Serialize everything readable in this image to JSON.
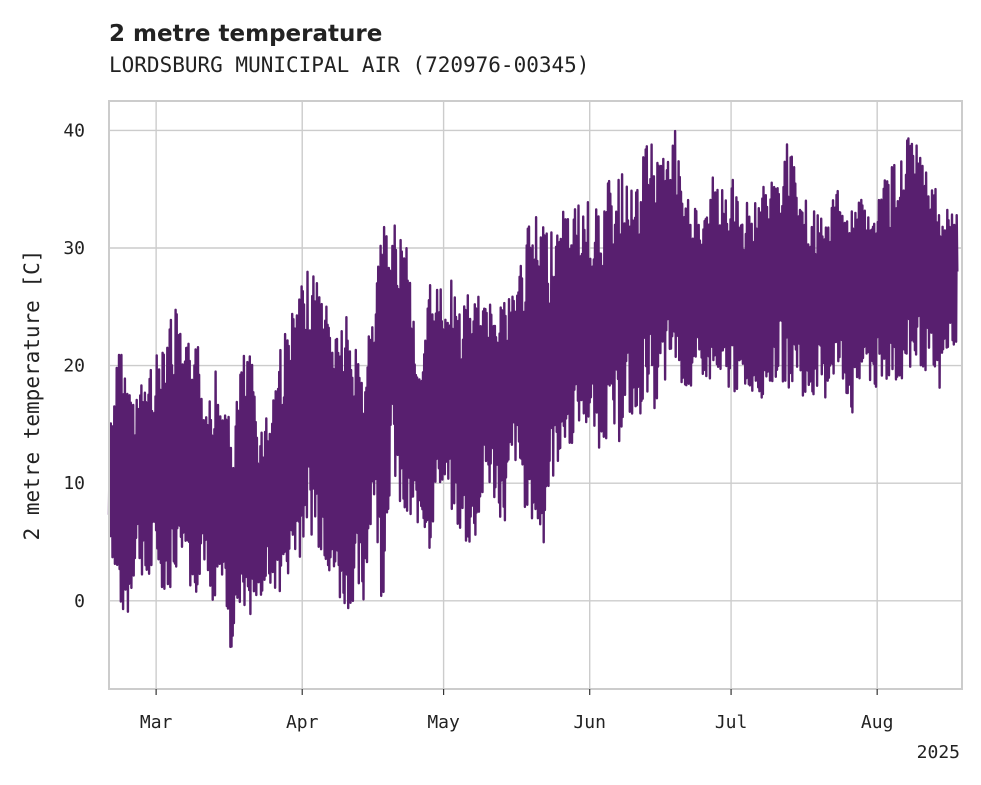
{
  "chart_data": {
    "type": "line",
    "title": "2 metre temperature",
    "subtitle": "LORDSBURG MUNICIPAL AIR (720976-00345)",
    "ylabel": "2 metre temperature [C]",
    "xlabel": "",
    "x_range": [
      "2025-02-19",
      "2025-08-19"
    ],
    "ylim": [
      -7.5,
      42.5
    ],
    "yticks": [
      0,
      10,
      20,
      30,
      40
    ],
    "xticks": [
      {
        "date": "2025-03-01",
        "label": "Mar"
      },
      {
        "date": "2025-04-01",
        "label": "Apr"
      },
      {
        "date": "2025-05-01",
        "label": "May"
      },
      {
        "date": "2025-06-01",
        "label": "Jun"
      },
      {
        "date": "2025-07-01",
        "label": "Jul"
      },
      {
        "date": "2025-08-01",
        "label": "Aug"
      }
    ],
    "year_label": "2025",
    "grid": true,
    "series": [
      {
        "color": "#581f6f",
        "x": [
          "2025-02-19",
          "2025-02-21",
          "2025-02-23",
          "2025-02-25",
          "2025-02-27",
          "2025-03-01",
          "2025-03-03",
          "2025-03-05",
          "2025-03-07",
          "2025-03-09",
          "2025-03-11",
          "2025-03-13",
          "2025-03-15",
          "2025-03-17",
          "2025-03-19",
          "2025-03-21",
          "2025-03-23",
          "2025-03-25",
          "2025-03-27",
          "2025-03-29",
          "2025-03-31",
          "2025-04-02",
          "2025-04-04",
          "2025-04-06",
          "2025-04-08",
          "2025-04-10",
          "2025-04-12",
          "2025-04-14",
          "2025-04-16",
          "2025-04-18",
          "2025-04-20",
          "2025-04-22",
          "2025-04-24",
          "2025-04-26",
          "2025-04-28",
          "2025-04-30",
          "2025-05-02",
          "2025-05-04",
          "2025-05-06",
          "2025-05-08",
          "2025-05-10",
          "2025-05-12",
          "2025-05-14",
          "2025-05-16",
          "2025-05-18",
          "2025-05-20",
          "2025-05-22",
          "2025-05-24",
          "2025-05-26",
          "2025-05-28",
          "2025-05-30",
          "2025-06-01",
          "2025-06-03",
          "2025-06-05",
          "2025-06-07",
          "2025-06-09",
          "2025-06-11",
          "2025-06-13",
          "2025-06-15",
          "2025-06-17",
          "2025-06-19",
          "2025-06-21",
          "2025-06-23",
          "2025-06-25",
          "2025-06-27",
          "2025-06-29",
          "2025-07-01",
          "2025-07-03",
          "2025-07-05",
          "2025-07-07",
          "2025-07-09",
          "2025-07-11",
          "2025-07-13",
          "2025-07-15",
          "2025-07-17",
          "2025-07-19",
          "2025-07-21",
          "2025-07-23",
          "2025-07-25",
          "2025-07-27",
          "2025-07-29",
          "2025-07-31",
          "2025-08-02",
          "2025-08-04",
          "2025-08-06",
          "2025-08-08",
          "2025-08-10",
          "2025-08-12",
          "2025-08-14",
          "2025-08-16",
          "2025-08-18"
        ],
        "min": [
          6,
          -1,
          -2,
          4,
          0,
          3,
          0,
          2,
          5,
          -1,
          4,
          -4,
          2,
          -5,
          0,
          -2,
          0,
          1,
          0,
          2,
          3,
          6,
          5,
          3,
          0,
          -1,
          0,
          -1,
          9,
          -1,
          12,
          6,
          5,
          7,
          4,
          10,
          8,
          6,
          4,
          5,
          10,
          8,
          6,
          12,
          8,
          6,
          4,
          10,
          12,
          13,
          15,
          14,
          13,
          14,
          13,
          16,
          14,
          18,
          16,
          18,
          20,
          18,
          17,
          19,
          18,
          17,
          18,
          17,
          18,
          17,
          18,
          19,
          18,
          19,
          16,
          18,
          17,
          19,
          18,
          15,
          19,
          18,
          17,
          19,
          18,
          19,
          20,
          19,
          17,
          21,
          22
        ],
        "max": [
          15,
          22,
          19,
          18,
          20,
          21,
          25,
          25,
          21,
          25,
          17,
          21,
          17,
          15,
          21,
          21,
          15,
          17,
          22,
          24,
          26,
          28,
          28,
          26,
          24,
          25,
          22,
          21,
          25,
          32,
          32,
          32,
          28,
          18,
          28,
          27,
          28,
          25,
          26,
          26,
          25,
          28,
          26,
          27,
          31,
          33,
          33,
          32,
          33,
          34,
          34,
          34,
          33,
          36,
          36,
          37,
          35,
          40,
          39,
          38,
          40,
          34,
          35,
          32,
          36,
          35,
          36,
          35,
          34,
          35,
          36,
          36,
          40,
          35,
          34,
          33,
          32,
          36,
          34,
          34,
          35,
          33,
          36,
          37,
          38,
          40,
          38,
          36,
          35,
          33,
          34
        ]
      }
    ]
  }
}
